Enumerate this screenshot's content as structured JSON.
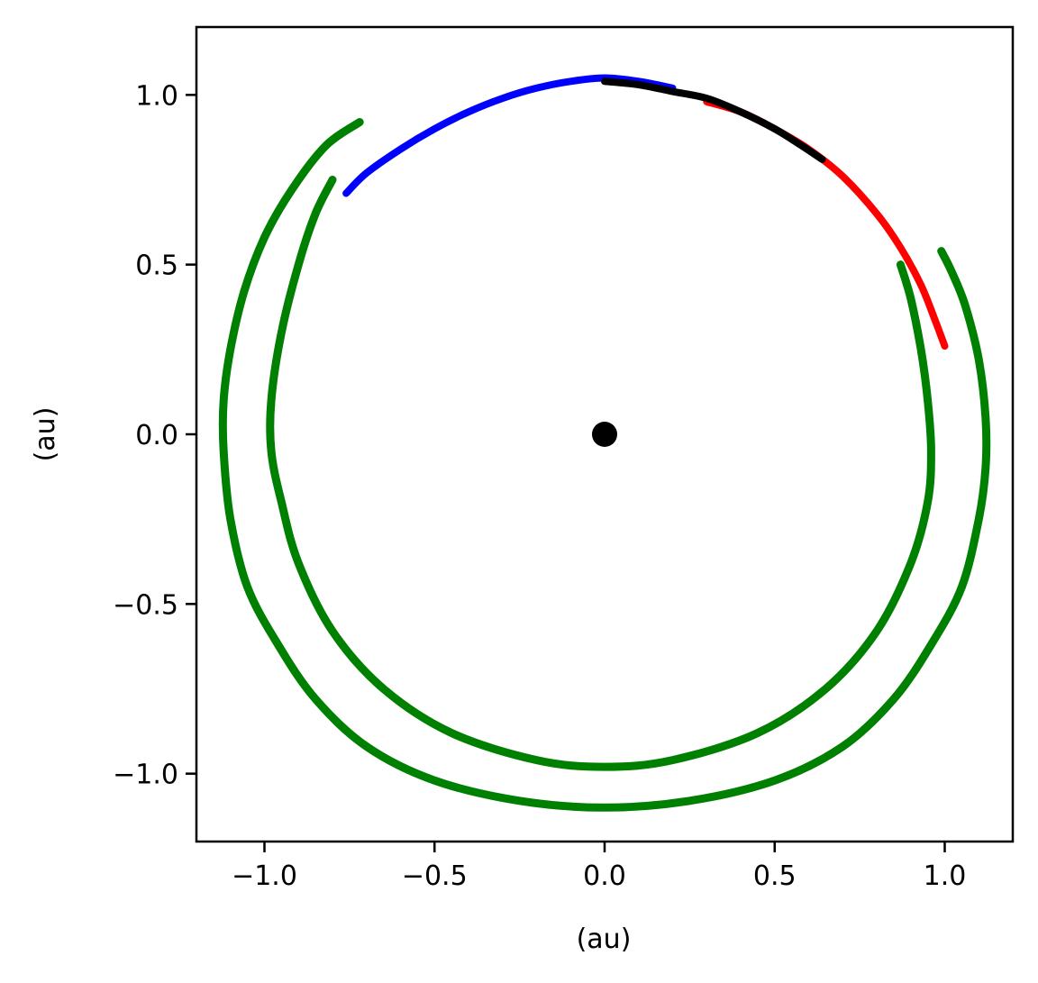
{
  "chart_data": {
    "type": "line",
    "title": "",
    "xlabel": "(au)",
    "ylabel": "(au)",
    "xlim": [
      -1.2,
      1.2
    ],
    "ylim": [
      -1.2,
      1.2
    ],
    "xticks": [
      -1.0,
      -0.5,
      0.0,
      0.5,
      1.0
    ],
    "yticks": [
      -1.0,
      -0.5,
      0.0,
      0.5,
      1.0
    ],
    "xtick_labels": [
      "−1.0",
      "−0.5",
      "0.0",
      "0.5",
      "1.0"
    ],
    "ytick_labels": [
      "−1.0",
      "−0.5",
      "0.0",
      "0.5",
      "1.0"
    ],
    "grid": false,
    "legend": "none",
    "series": [
      {
        "color": "#008000",
        "style": "horseshoe orbit traces",
        "x": [
          0.99,
          1.02,
          1.06,
          1.1,
          1.12,
          1.12,
          1.1,
          1.05,
          0.96,
          0.85,
          0.7,
          0.5,
          0.25,
          0.0,
          -0.25,
          -0.5,
          -0.7,
          -0.85,
          -0.96,
          -1.05,
          -1.1,
          -1.12,
          -1.12,
          -1.1,
          -1.06,
          -1.0,
          -0.92,
          -0.82,
          -0.72
        ],
        "y": [
          0.54,
          0.48,
          0.38,
          0.22,
          0.05,
          -0.1,
          -0.25,
          -0.45,
          -0.62,
          -0.78,
          -0.92,
          -1.02,
          -1.08,
          -1.1,
          -1.08,
          -1.02,
          -0.92,
          -0.78,
          -0.62,
          -0.45,
          -0.25,
          -0.05,
          0.1,
          0.25,
          0.42,
          0.58,
          0.72,
          0.85,
          0.92
        ]
      },
      {
        "color": "#008000",
        "style": "inner horseshoe trace",
        "x": [
          0.87,
          0.9,
          0.93,
          0.95,
          0.96,
          0.95,
          0.9,
          0.8,
          0.65,
          0.45,
          0.2,
          0.0,
          -0.2,
          -0.45,
          -0.65,
          -0.8,
          -0.9,
          -0.95,
          -0.98,
          -0.98,
          -0.95,
          -0.9,
          -0.85,
          -0.8
        ],
        "y": [
          0.5,
          0.4,
          0.25,
          0.1,
          -0.05,
          -0.2,
          -0.38,
          -0.58,
          -0.75,
          -0.88,
          -0.96,
          -0.98,
          -0.96,
          -0.88,
          -0.75,
          -0.58,
          -0.38,
          -0.2,
          -0.05,
          0.1,
          0.3,
          0.5,
          0.65,
          0.75
        ]
      },
      {
        "color": "#0000ff",
        "style": "tadpole trace",
        "x": [
          -0.76,
          -0.7,
          -0.6,
          -0.5,
          -0.4,
          -0.3,
          -0.2,
          -0.1,
          0.0,
          0.1,
          0.2
        ],
        "y": [
          0.71,
          0.77,
          0.84,
          0.9,
          0.95,
          0.99,
          1.02,
          1.04,
          1.05,
          1.04,
          1.02
        ]
      },
      {
        "color": "#ff0000",
        "style": "tadpole trace",
        "x": [
          0.3,
          0.4,
          0.5,
          0.6,
          0.7,
          0.8,
          0.87,
          0.93,
          0.97,
          1.0
        ],
        "y": [
          0.98,
          0.95,
          0.9,
          0.84,
          0.76,
          0.65,
          0.55,
          0.44,
          0.34,
          0.26
        ]
      },
      {
        "color": "#000000",
        "style": "tadpole trace",
        "x": [
          0.0,
          0.1,
          0.2,
          0.3,
          0.4,
          0.5,
          0.58,
          0.64
        ],
        "y": [
          1.04,
          1.03,
          1.01,
          0.99,
          0.95,
          0.9,
          0.85,
          0.81
        ]
      }
    ],
    "markers": [
      {
        "x": 0.0,
        "y": 0.0,
        "color": "#000000"
      }
    ]
  }
}
